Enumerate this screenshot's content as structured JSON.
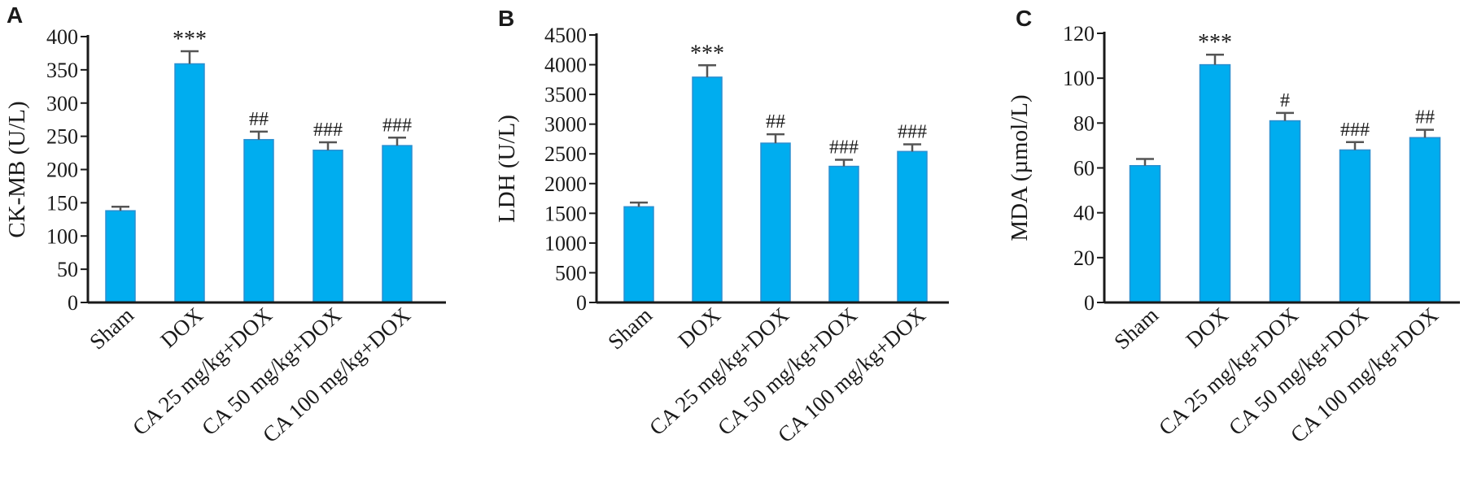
{
  "colors": {
    "bar_fill": "#00ADEF",
    "bar_edge": "#2B8FD0",
    "error_bar": "#555555",
    "axis": "#1a1a1a"
  },
  "chart_data": [
    {
      "panel": "A",
      "type": "bar",
      "categories": [
        "Sham",
        "DOX",
        "CA 25 mg/kg+DOX",
        "CA 50 mg/kg+DOX",
        "CA 100 mg/kg+DOX"
      ],
      "values": [
        138,
        359,
        245,
        229,
        236
      ],
      "errors": [
        6,
        19,
        12,
        12,
        12
      ],
      "annotations": [
        "",
        "***",
        "##",
        "###",
        "###"
      ],
      "ylabel": "CK-MB (U/L)",
      "ylim": [
        0,
        400
      ],
      "yticks": [
        0,
        50,
        100,
        150,
        200,
        250,
        300,
        350,
        400
      ],
      "grid": false
    },
    {
      "panel": "B",
      "type": "bar",
      "categories": [
        "Sham",
        "DOX",
        "CA 25 mg/kg+DOX",
        "CA 50 mg/kg+DOX",
        "CA 100 mg/kg+DOX"
      ],
      "values": [
        1610,
        3790,
        2680,
        2290,
        2540
      ],
      "errors": [
        70,
        200,
        150,
        110,
        120
      ],
      "annotations": [
        "",
        "***",
        "##",
        "###",
        "###"
      ],
      "ylabel": "LDH (U/L)",
      "ylim": [
        0,
        4500
      ],
      "yticks": [
        0,
        500,
        1000,
        1500,
        2000,
        2500,
        3000,
        3500,
        4000,
        4500
      ],
      "grid": false
    },
    {
      "panel": "C",
      "type": "bar",
      "categories": [
        "Sham",
        "DOX",
        "CA 25 mg/kg+DOX",
        "CA 50 mg/kg+DOX",
        "CA 100 mg/kg+DOX"
      ],
      "values": [
        61,
        106,
        81,
        68,
        73.5
      ],
      "errors": [
        3,
        4.5,
        3.5,
        3.5,
        3.5
      ],
      "annotations": [
        "",
        "***",
        "#",
        "###",
        "##"
      ],
      "ylabel": "MDA (µmol/L)",
      "ylim": [
        0,
        120
      ],
      "yticks": [
        0,
        20,
        40,
        60,
        80,
        100,
        120
      ],
      "grid": false
    }
  ]
}
